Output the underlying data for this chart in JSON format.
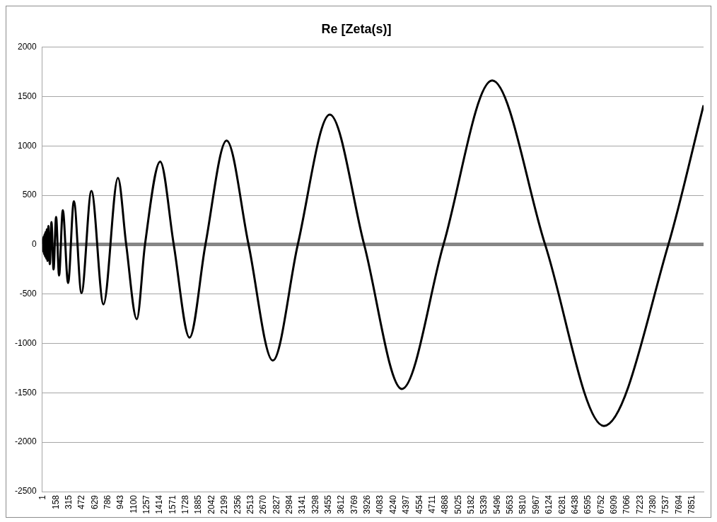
{
  "chart_data": {
    "type": "line",
    "title": "Re [Zeta(s)]",
    "x": [
      1,
      8,
      13,
      18,
      23,
      29,
      35,
      40,
      49,
      57,
      65,
      76,
      93,
      113,
      138,
      169,
      205,
      250,
      314,
      384,
      476,
      596,
      742,
      917,
      1017,
      1145,
      1244,
      1428,
      1592,
      1783,
      1975,
      2231,
      2497,
      2790,
      3092,
      3479,
      3895,
      4351,
      4854,
      5443,
      6084,
      6794,
      7574,
      8000
    ],
    "values": [
      0,
      60,
      -70,
      82,
      -96,
      105,
      -119,
      128,
      -141,
      155,
      -164,
      189,
      -198,
      228,
      -251,
      280,
      -312,
      349,
      -388,
      440,
      -490,
      543,
      -604,
      676,
      0,
      -754,
      0,
      841,
      0,
      -941,
      0,
      1053,
      0,
      -1174,
      0,
      1316,
      0,
      -1461,
      0,
      1662,
      0,
      -1835,
      0,
      1411
    ],
    "color": "#000000",
    "xlim": [
      1,
      8000
    ],
    "xticks": [
      1,
      158,
      315,
      472,
      629,
      786,
      943,
      1100,
      1257,
      1414,
      1571,
      1728,
      1885,
      2042,
      2199,
      2356,
      2513,
      2670,
      2827,
      2984,
      3141,
      3298,
      3455,
      3612,
      3769,
      3926,
      4083,
      4240,
      4397,
      4554,
      4711,
      4868,
      5025,
      5182,
      5339,
      5496,
      5653,
      5810,
      5967,
      6124,
      6281,
      6438,
      6595,
      6752,
      6909,
      7066,
      7223,
      7380,
      7537,
      7694,
      7851
    ],
    "ylim": [
      -2500,
      2000
    ],
    "yticks": [
      -2500,
      -2000,
      -1500,
      -1000,
      -500,
      0,
      500,
      1000,
      1500,
      2000
    ],
    "grid": "y",
    "legend": false,
    "marker": "none",
    "line_style": "solid"
  }
}
